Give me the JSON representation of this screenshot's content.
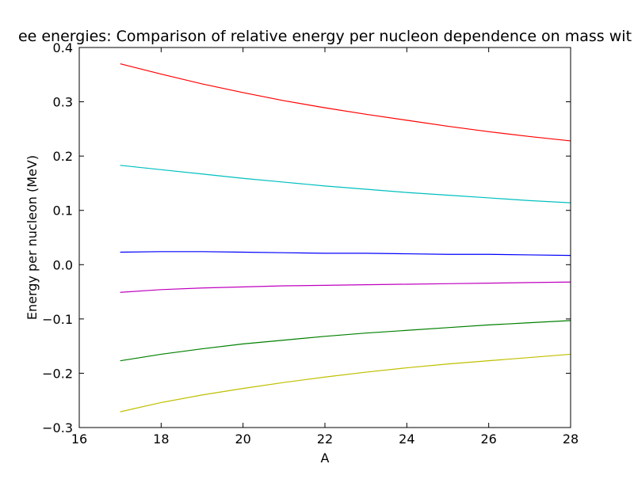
{
  "chart_data": {
    "type": "line",
    "title": "ee energies: Comparison of relative energy per nucleon dependence on mass wit",
    "xlabel": "A",
    "ylabel": "Energy per nucleon (MeV)",
    "xlim": [
      16,
      28
    ],
    "ylim": [
      -0.3,
      0.4
    ],
    "grid": false,
    "xticks": [
      "16",
      "18",
      "20",
      "22",
      "24",
      "26",
      "28"
    ],
    "yticks": [
      "−0.3",
      "−0.2",
      "−0.1",
      "0.0",
      "0.1",
      "0.2",
      "0.3",
      "0.4"
    ],
    "x": [
      17,
      18,
      19,
      20,
      21,
      22,
      23,
      24,
      25,
      26,
      27,
      28
    ],
    "series": [
      {
        "color": "#ff0000",
        "values": [
          0.37,
          0.351,
          0.333,
          0.317,
          0.302,
          0.289,
          0.277,
          0.266,
          0.255,
          0.245,
          0.236,
          0.228
        ]
      },
      {
        "color": "#00bfbf",
        "values": [
          0.183,
          0.175,
          0.167,
          0.159,
          0.152,
          0.145,
          0.139,
          0.133,
          0.128,
          0.123,
          0.118,
          0.114
        ]
      },
      {
        "color": "#0000ff",
        "values": [
          0.023,
          0.024,
          0.024,
          0.023,
          0.022,
          0.021,
          0.021,
          0.02,
          0.019,
          0.019,
          0.018,
          0.017
        ]
      },
      {
        "color": "#bf00bf",
        "values": [
          -0.051,
          -0.046,
          -0.043,
          -0.041,
          -0.039,
          -0.038,
          -0.037,
          -0.036,
          -0.035,
          -0.034,
          -0.033,
          -0.032
        ]
      },
      {
        "color": "#008000",
        "values": [
          -0.177,
          -0.165,
          -0.155,
          -0.146,
          -0.139,
          -0.132,
          -0.126,
          -0.121,
          -0.116,
          -0.111,
          -0.107,
          -0.103
        ]
      },
      {
        "color": "#bfbf00",
        "values": [
          -0.271,
          -0.254,
          -0.24,
          -0.228,
          -0.217,
          -0.207,
          -0.198,
          -0.19,
          -0.183,
          -0.177,
          -0.171,
          -0.165
        ]
      }
    ]
  }
}
